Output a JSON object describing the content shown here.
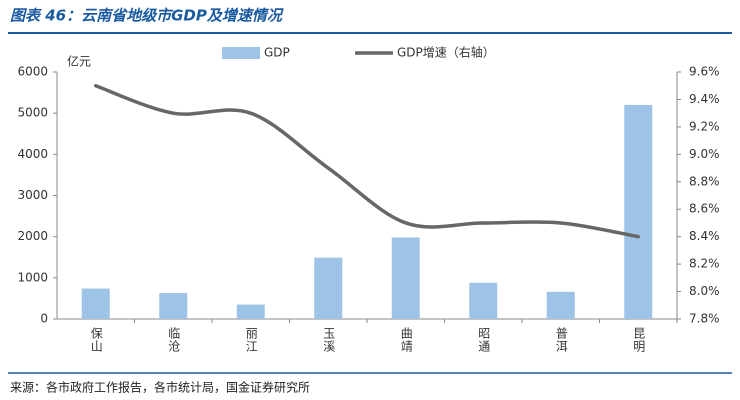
{
  "chart_data": {
    "type": "bar",
    "title": "图表 46：云南省地级市GDP及增速情况",
    "y_label": "亿元",
    "source": "来源：各市政府工作报告，各市统计局，国金证券研究所",
    "categories": [
      "保山",
      "临沧",
      "丽江",
      "玉溪",
      "曲靖",
      "昭通",
      "普洱",
      "昆明"
    ],
    "series": [
      {
        "name": "GDP",
        "type": "bar",
        "color": "#9dc3e6",
        "values": [
          740,
          630,
          350,
          1490,
          1980,
          880,
          660,
          5200
        ]
      },
      {
        "name": "GDP增速（右轴）",
        "type": "line",
        "axis": "y2",
        "color": "#676767",
        "values": [
          9.5,
          9.3,
          9.3,
          8.9,
          8.5,
          8.5,
          8.5,
          8.4
        ]
      }
    ],
    "ylim": [
      0,
      6000
    ],
    "yticks": [
      0,
      1000,
      2000,
      3000,
      4000,
      5000,
      6000
    ],
    "y2lim": [
      7.8,
      9.6
    ],
    "y2ticks": [
      {
        "value": 7.8,
        "label": "7.8%"
      },
      {
        "value": 8.0,
        "label": "8.0%"
      },
      {
        "value": 8.2,
        "label": "8.2%"
      },
      {
        "value": 8.4,
        "label": "8.4%"
      },
      {
        "value": 8.6,
        "label": "8.6%"
      },
      {
        "value": 8.8,
        "label": "8.8%"
      },
      {
        "value": 9.0,
        "label": "9.0%"
      },
      {
        "value": 9.2,
        "label": "9.2%"
      },
      {
        "value": 9.4,
        "label": "9.4%"
      },
      {
        "value": 9.6,
        "label": "9.6%"
      }
    ],
    "grid": false,
    "smooth": true
  }
}
